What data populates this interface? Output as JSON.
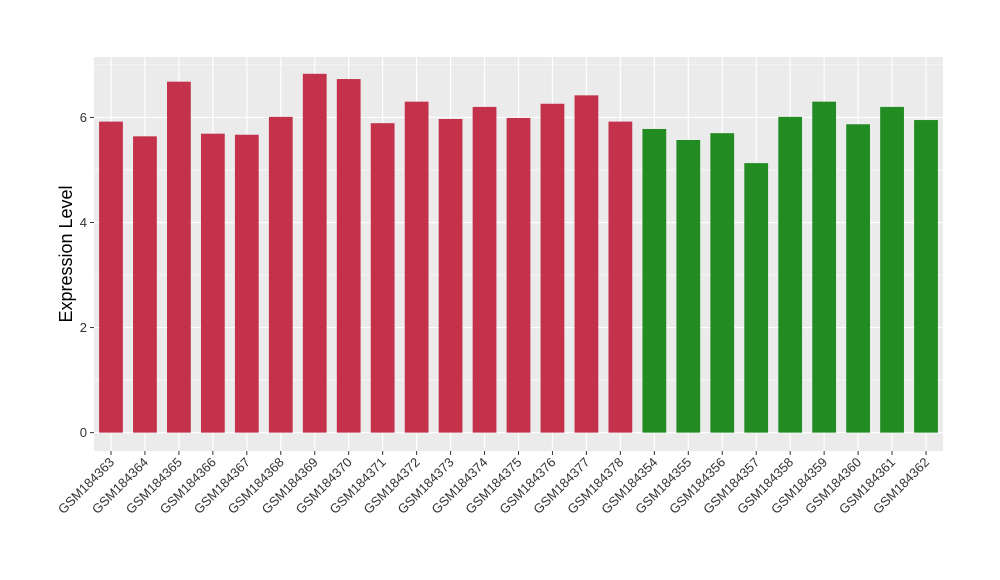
{
  "chart_data": {
    "type": "bar",
    "xlabel": "",
    "ylabel": "Expression Level",
    "ylim": [
      -0.35,
      7.15
    ],
    "yticks": [
      0,
      2,
      4,
      6
    ],
    "grid": true,
    "background": "#EBEBEB",
    "group_colors": {
      "first": "#C4314B",
      "second": "#228B22"
    },
    "categories": [
      "GSM184363",
      "GSM184364",
      "GSM184365",
      "GSM184366",
      "GSM184367",
      "GSM184368",
      "GSM184369",
      "GSM184370",
      "GSM184371",
      "GSM184372",
      "GSM184373",
      "GSM184374",
      "GSM184375",
      "GSM184376",
      "GSM184377",
      "GSM184378",
      "GSM184354",
      "GSM184355",
      "GSM184356",
      "GSM184357",
      "GSM184358",
      "GSM184359",
      "GSM184360",
      "GSM184361",
      "GSM184362"
    ],
    "values": [
      5.92,
      5.64,
      6.68,
      5.69,
      5.67,
      6.01,
      6.83,
      6.73,
      5.89,
      6.3,
      5.97,
      6.2,
      5.99,
      6.26,
      6.42,
      5.92,
      5.78,
      5.57,
      5.7,
      5.13,
      6.01,
      6.3,
      5.87,
      6.2,
      5.95
    ],
    "colors": [
      "#C4314B",
      "#C4314B",
      "#C4314B",
      "#C4314B",
      "#C4314B",
      "#C4314B",
      "#C4314B",
      "#C4314B",
      "#C4314B",
      "#C4314B",
      "#C4314B",
      "#C4314B",
      "#C4314B",
      "#C4314B",
      "#C4314B",
      "#C4314B",
      "#228B22",
      "#228B22",
      "#228B22",
      "#228B22",
      "#228B22",
      "#228B22",
      "#228B22",
      "#228B22",
      "#228B22"
    ]
  }
}
